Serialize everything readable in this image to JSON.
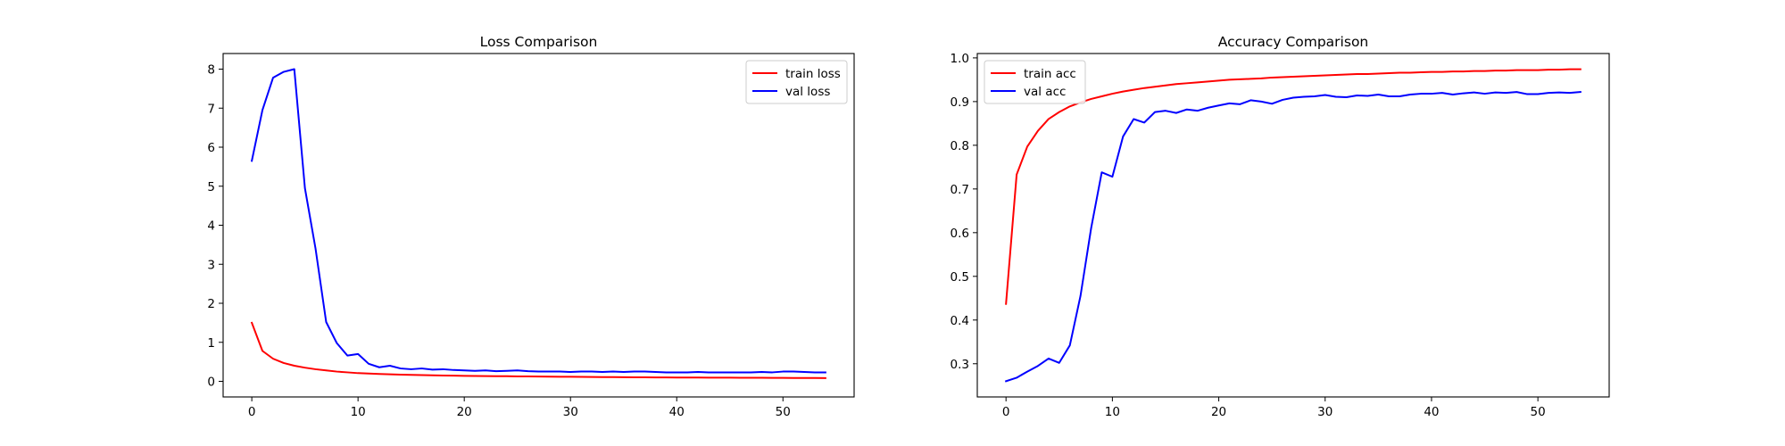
{
  "chart_data": [
    {
      "type": "line",
      "title": "Loss Comparison",
      "xlabel": "",
      "ylabel": "",
      "xlim": [
        -2.7,
        56.7
      ],
      "ylim": [
        -0.4,
        8.4
      ],
      "xticks": [
        0,
        10,
        20,
        30,
        40,
        50
      ],
      "yticks": [
        0,
        1,
        2,
        3,
        4,
        5,
        6,
        7,
        8
      ],
      "grid": false,
      "legend": "upper right",
      "series": [
        {
          "name": "train loss",
          "color": "#ff0000",
          "x": [
            0,
            1,
            2,
            3,
            4,
            5,
            6,
            7,
            8,
            9,
            10,
            11,
            12,
            13,
            14,
            15,
            16,
            17,
            18,
            19,
            20,
            21,
            22,
            23,
            24,
            25,
            26,
            27,
            28,
            29,
            30,
            31,
            32,
            33,
            34,
            35,
            36,
            37,
            38,
            39,
            40,
            41,
            42,
            43,
            44,
            45,
            46,
            47,
            48,
            49,
            50,
            51,
            52,
            53,
            54
          ],
          "values": [
            1.5,
            0.78,
            0.58,
            0.47,
            0.4,
            0.35,
            0.31,
            0.28,
            0.25,
            0.23,
            0.21,
            0.2,
            0.19,
            0.18,
            0.17,
            0.165,
            0.16,
            0.155,
            0.15,
            0.145,
            0.14,
            0.138,
            0.135,
            0.132,
            0.13,
            0.127,
            0.125,
            0.122,
            0.12,
            0.118,
            0.116,
            0.114,
            0.112,
            0.11,
            0.108,
            0.106,
            0.104,
            0.102,
            0.1,
            0.099,
            0.098,
            0.097,
            0.096,
            0.095,
            0.094,
            0.093,
            0.092,
            0.091,
            0.09,
            0.089,
            0.088,
            0.087,
            0.086,
            0.085,
            0.084
          ]
        },
        {
          "name": "val loss",
          "color": "#0000ff",
          "x": [
            0,
            1,
            2,
            3,
            4,
            5,
            6,
            7,
            8,
            9,
            10,
            11,
            12,
            13,
            14,
            15,
            16,
            17,
            18,
            19,
            20,
            21,
            22,
            23,
            24,
            25,
            26,
            27,
            28,
            29,
            30,
            31,
            32,
            33,
            34,
            35,
            36,
            37,
            38,
            39,
            40,
            41,
            42,
            43,
            44,
            45,
            46,
            47,
            48,
            49,
            50,
            51,
            52,
            53,
            54
          ],
          "values": [
            5.65,
            6.95,
            7.78,
            7.93,
            8.0,
            4.95,
            3.4,
            1.52,
            0.98,
            0.66,
            0.7,
            0.45,
            0.36,
            0.4,
            0.33,
            0.31,
            0.33,
            0.3,
            0.31,
            0.29,
            0.28,
            0.27,
            0.28,
            0.26,
            0.27,
            0.28,
            0.26,
            0.25,
            0.25,
            0.25,
            0.24,
            0.25,
            0.25,
            0.24,
            0.25,
            0.24,
            0.25,
            0.25,
            0.24,
            0.23,
            0.23,
            0.23,
            0.24,
            0.23,
            0.23,
            0.23,
            0.23,
            0.23,
            0.24,
            0.23,
            0.25,
            0.25,
            0.24,
            0.23,
            0.23
          ]
        }
      ]
    },
    {
      "type": "line",
      "title": "Accuracy Comparison",
      "xlabel": "",
      "ylabel": "",
      "xlim": [
        -2.7,
        56.7
      ],
      "ylim": [
        0.224,
        1.01
      ],
      "xticks": [
        0,
        10,
        20,
        30,
        40,
        50
      ],
      "yticks": [
        0.3,
        0.4,
        0.5,
        0.6,
        0.7,
        0.8,
        0.9,
        1.0
      ],
      "ytick_labels": [
        "0.3",
        "0.4",
        "0.5",
        "0.6",
        "0.7",
        "0.8",
        "0.9",
        "1.0"
      ],
      "grid": false,
      "legend": "upper left",
      "series": [
        {
          "name": "train acc",
          "color": "#ff0000",
          "x": [
            0,
            1,
            2,
            3,
            4,
            5,
            6,
            7,
            8,
            9,
            10,
            11,
            12,
            13,
            14,
            15,
            16,
            17,
            18,
            19,
            20,
            21,
            22,
            23,
            24,
            25,
            26,
            27,
            28,
            29,
            30,
            31,
            32,
            33,
            34,
            35,
            36,
            37,
            38,
            39,
            40,
            41,
            42,
            43,
            44,
            45,
            46,
            47,
            48,
            49,
            50,
            51,
            52,
            53,
            54
          ],
          "values": [
            0.437,
            0.733,
            0.797,
            0.833,
            0.86,
            0.876,
            0.889,
            0.898,
            0.906,
            0.912,
            0.918,
            0.923,
            0.927,
            0.931,
            0.934,
            0.937,
            0.94,
            0.942,
            0.944,
            0.946,
            0.948,
            0.95,
            0.951,
            0.952,
            0.953,
            0.955,
            0.956,
            0.957,
            0.958,
            0.959,
            0.96,
            0.961,
            0.962,
            0.963,
            0.963,
            0.964,
            0.965,
            0.966,
            0.966,
            0.967,
            0.968,
            0.968,
            0.969,
            0.969,
            0.97,
            0.97,
            0.971,
            0.971,
            0.972,
            0.972,
            0.972,
            0.973,
            0.973,
            0.974,
            0.974
          ]
        },
        {
          "name": "val acc",
          "color": "#0000ff",
          "x": [
            0,
            1,
            2,
            3,
            4,
            5,
            6,
            7,
            8,
            9,
            10,
            11,
            12,
            13,
            14,
            15,
            16,
            17,
            18,
            19,
            20,
            21,
            22,
            23,
            24,
            25,
            26,
            27,
            28,
            29,
            30,
            31,
            32,
            33,
            34,
            35,
            36,
            37,
            38,
            39,
            40,
            41,
            42,
            43,
            44,
            45,
            46,
            47,
            48,
            49,
            50,
            51,
            52,
            53,
            54
          ],
          "values": [
            0.26,
            0.268,
            0.282,
            0.295,
            0.312,
            0.302,
            0.342,
            0.455,
            0.61,
            0.738,
            0.728,
            0.82,
            0.86,
            0.852,
            0.876,
            0.879,
            0.874,
            0.882,
            0.879,
            0.886,
            0.891,
            0.896,
            0.894,
            0.903,
            0.9,
            0.895,
            0.904,
            0.909,
            0.911,
            0.912,
            0.915,
            0.911,
            0.91,
            0.914,
            0.913,
            0.916,
            0.912,
            0.912,
            0.916,
            0.918,
            0.918,
            0.92,
            0.916,
            0.919,
            0.921,
            0.918,
            0.921,
            0.92,
            0.922,
            0.917,
            0.917,
            0.92,
            0.921,
            0.92,
            0.922
          ]
        }
      ]
    }
  ]
}
